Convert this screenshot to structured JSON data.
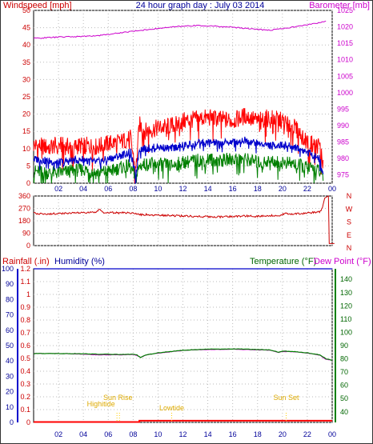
{
  "chart_data": [
    {
      "type": "line",
      "title": "24 hour graph day : July 03 2014",
      "left_axis_label": "Windspeed [mph]",
      "right_axis_label": "Barometer [mb]",
      "x_ticks": [
        "02",
        "04",
        "06",
        "08",
        "10",
        "12",
        "14",
        "16",
        "18",
        "20",
        "22",
        "00"
      ],
      "left_ticks": [
        "0",
        "5",
        "10",
        "15",
        "20",
        "25",
        "30",
        "35",
        "40",
        "45",
        "50"
      ],
      "right_ticks": [
        "975",
        "980",
        "985",
        "990",
        "995",
        "1000",
        "1005",
        "1010",
        "1015",
        "1020",
        "1025"
      ],
      "xlim": [
        0,
        24
      ],
      "ylim_left": [
        0,
        50
      ],
      "ylim_right": [
        972.5,
        1025
      ],
      "grid": true,
      "colors": {
        "gust": "#ff0000",
        "wind": "#008000",
        "avg": "#0000cc",
        "barometer": "#cc00cc"
      },
      "series": [
        {
          "axis": "right",
          "role": "barometer",
          "x": [
            0,
            2,
            4,
            5,
            6,
            7,
            8,
            9,
            10,
            11,
            12,
            13,
            14,
            15,
            16,
            17,
            18,
            19,
            20,
            21,
            22,
            23,
            23.6
          ],
          "y": [
            1016.5,
            1016.9,
            1017.1,
            1017.3,
            1017.7,
            1018.2,
            1018.7,
            1019.1,
            1019.5,
            1019.9,
            1020.2,
            1020.4,
            1020.3,
            1020.1,
            1019.9,
            1019.6,
            1019.2,
            1019.0,
            1019.5,
            1020.0,
            1020.6,
            1021.3,
            1021.8
          ]
        },
        {
          "axis": "left",
          "role": "gust",
          "x": [
            0,
            1,
            2,
            3,
            4,
            5,
            6,
            7,
            7.8,
            8.2,
            8.5,
            9,
            10,
            11,
            12,
            13,
            14,
            15,
            16,
            17,
            18,
            19,
            20,
            21,
            22,
            22.6,
            23,
            23.3
          ],
          "y": [
            11,
            10.5,
            11,
            10.5,
            11,
            10.5,
            11.5,
            12,
            13,
            3,
            17,
            15,
            16,
            16.5,
            18,
            18.5,
            19,
            18.5,
            18,
            19.5,
            18,
            19,
            18,
            16,
            12,
            11,
            11,
            5
          ]
        },
        {
          "axis": "left",
          "role": "avg",
          "x": [
            0,
            1,
            2,
            3,
            4,
            5,
            6,
            7,
            7.8,
            8.2,
            8.5,
            9,
            10,
            11,
            12,
            13,
            14,
            15,
            16,
            17,
            18,
            19,
            20,
            21,
            22,
            22.6,
            23,
            23.3
          ],
          "y": [
            7,
            6.5,
            6,
            6.5,
            7,
            6,
            7,
            8,
            9,
            2,
            10,
            10,
            10.5,
            10,
            11,
            11.5,
            12,
            11.5,
            12,
            12.5,
            11.5,
            11,
            11,
            10.5,
            9,
            8,
            7,
            2
          ]
        },
        {
          "axis": "left",
          "role": "wind",
          "x": [
            0,
            1,
            2,
            3,
            4,
            5,
            6,
            7,
            7.8,
            8.2,
            8.5,
            9,
            10,
            11,
            12,
            13,
            14,
            15,
            16,
            17,
            18,
            19,
            20,
            21,
            22,
            22.6,
            23,
            23.3
          ],
          "y": [
            3.5,
            3,
            3,
            3.5,
            4,
            3,
            3.5,
            4.5,
            5,
            1,
            5,
            5.5,
            5.5,
            5,
            6,
            6.5,
            7,
            6.5,
            7,
            7,
            6,
            6.5,
            6,
            5.5,
            4.5,
            4,
            3.5,
            1
          ]
        }
      ]
    },
    {
      "type": "line",
      "direction_labels": [
        "N",
        "W",
        "S",
        "E",
        "N"
      ],
      "left_ticks": [
        "0",
        "90",
        "180",
        "270",
        "360"
      ],
      "xlim": [
        0,
        24
      ],
      "ylim": [
        0,
        360
      ],
      "colors": {
        "direction": "#cc0000"
      },
      "series": [
        {
          "role": "direction",
          "x": [
            0,
            1,
            2,
            3,
            4,
            5,
            5.3,
            5.6,
            6,
            7,
            8,
            8.4,
            9,
            10,
            11,
            12,
            13,
            14,
            15,
            16,
            17,
            18,
            19,
            20,
            20.2,
            20.6,
            21,
            22,
            23,
            23.2,
            23.4,
            23.6,
            23.7,
            23.7,
            24.2
          ],
          "y": [
            235,
            230,
            232,
            236,
            238,
            240,
            262,
            242,
            240,
            238,
            236,
            225,
            225,
            220,
            218,
            215,
            212,
            210,
            208,
            212,
            215,
            212,
            218,
            222,
            240,
            225,
            232,
            236,
            245,
            270,
            345,
            355,
            360,
            15,
            15
          ]
        }
      ]
    },
    {
      "type": "line",
      "left_axis_label": "Rainfall (.in)",
      "left2_axis_label": "Humidity (%)",
      "right_axis_label": "Temperature (°F)",
      "right2_axis_label": "Dew Point (°F)",
      "rain_ticks": [
        "0",
        "0.1",
        "0.2",
        "0.3",
        "0.4",
        "0.5",
        "0.6",
        "0.7",
        "0.8",
        "0.9",
        "1",
        "1.1",
        "1.2"
      ],
      "humidity_ticks": [
        "0",
        "10",
        "20",
        "30",
        "40",
        "50",
        "60",
        "70",
        "80",
        "90",
        "100"
      ],
      "temperature_ticks": [
        "40",
        "50",
        "60",
        "70",
        "80",
        "90",
        "100",
        "110",
        "120",
        "130",
        "140"
      ],
      "x_ticks": [
        "02",
        "04",
        "06",
        "08",
        "10",
        "12",
        "14",
        "16",
        "18",
        "20",
        "22",
        "00"
      ],
      "xlim": [
        0,
        24
      ],
      "rain_ylim": [
        0,
        1.2
      ],
      "humidity_ylim": [
        0,
        100
      ],
      "temperature_ylim": [
        32,
        148
      ],
      "grid": true,
      "colors": {
        "rain": "#ff0000",
        "humidity": "#0000cc",
        "temperature": "#008000",
        "dewpoint": "#cc00cc",
        "events": "#ffcc00"
      },
      "events": [
        {
          "label": "Highitide",
          "hour": 6.7
        },
        {
          "label": "Sun Rise",
          "hour": 6.9
        },
        {
          "label": "Lowtide",
          "hour": 11.1
        },
        {
          "label": "Sun Set",
          "hour": 20.3
        }
      ],
      "series": [
        {
          "role": "humidity",
          "x": [
            0,
            24
          ],
          "y": [
            100,
            100
          ]
        },
        {
          "role": "rain",
          "x": [
            0,
            8.5,
            8.5,
            24
          ],
          "y": [
            0,
            0,
            0.01,
            0.01
          ]
        },
        {
          "role": "temperature",
          "x": [
            0,
            2,
            4,
            5,
            6,
            7,
            8,
            8.3,
            8.6,
            9,
            10,
            11,
            12,
            13,
            14,
            15,
            16,
            17,
            18,
            19,
            19.7,
            20,
            21,
            22,
            23,
            23.5,
            24
          ],
          "y": [
            84,
            84,
            83.8,
            83.5,
            83.5,
            83.3,
            83.5,
            83,
            81,
            83,
            84.5,
            85.5,
            86.5,
            87,
            87.3,
            87.3,
            87.5,
            87.3,
            87,
            86.8,
            85,
            85.8,
            85.5,
            84.5,
            83,
            80,
            79
          ]
        },
        {
          "role": "dewpoint",
          "x": [
            0,
            2,
            4,
            5,
            6,
            7,
            8,
            8.3,
            8.6,
            9,
            10,
            11,
            12,
            13,
            14,
            15,
            16,
            17,
            18,
            19,
            19.7,
            20,
            21,
            22,
            23,
            23.5,
            24
          ],
          "y": [
            84,
            84,
            83.5,
            83,
            83,
            83,
            83.3,
            82.5,
            81,
            82.8,
            84.3,
            85.3,
            86.3,
            86.8,
            87,
            87,
            87.3,
            87,
            86.8,
            86.5,
            84.8,
            85.5,
            85.3,
            84.3,
            82.8,
            79.5,
            79
          ]
        }
      ]
    }
  ]
}
